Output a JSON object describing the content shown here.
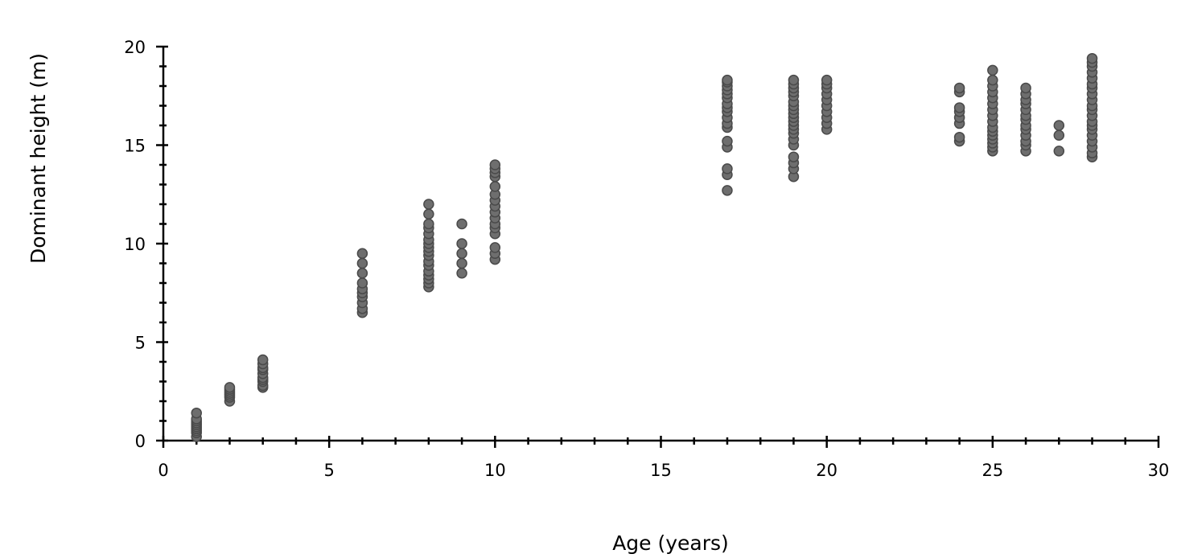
{
  "chart_data": {
    "type": "scatter",
    "title": "",
    "xlabel": "Age (years)",
    "ylabel": "Dominant height (m)",
    "xlim": [
      0,
      30
    ],
    "ylim": [
      0,
      20
    ],
    "x_ticks": [
      0,
      5,
      10,
      15,
      20,
      25,
      30
    ],
    "y_ticks": [
      0,
      5,
      10,
      15,
      20
    ],
    "x_tick_labels": [
      "0",
      "5",
      "10",
      "15",
      "20",
      "25",
      "30"
    ],
    "y_tick_labels": [
      "0",
      "5",
      "10",
      "15",
      "20"
    ],
    "x_minor_step": 1,
    "y_minor_step": 1,
    "grid": false,
    "legend": "none",
    "marker_color": "#6e6e6e",
    "series": [
      {
        "points": [
          [
            1,
            0.2
          ],
          [
            1,
            0.4
          ],
          [
            1,
            0.5
          ],
          [
            1,
            0.6
          ],
          [
            1,
            0.7
          ],
          [
            1,
            0.8
          ],
          [
            1,
            0.9
          ],
          [
            1,
            1.0
          ],
          [
            1,
            1.1
          ],
          [
            1,
            1.4
          ],
          [
            2,
            2.0
          ],
          [
            2,
            2.2
          ],
          [
            2,
            2.3
          ],
          [
            2,
            2.4
          ],
          [
            2,
            2.5
          ],
          [
            2,
            2.6
          ],
          [
            2,
            2.7
          ],
          [
            3,
            2.7
          ],
          [
            3,
            2.8
          ],
          [
            3,
            3.0
          ],
          [
            3,
            3.1
          ],
          [
            3,
            3.2
          ],
          [
            3,
            3.4
          ],
          [
            3,
            3.6
          ],
          [
            3,
            3.7
          ],
          [
            3,
            3.9
          ],
          [
            3,
            4.1
          ],
          [
            6,
            6.5
          ],
          [
            6,
            6.7
          ],
          [
            6,
            7.0
          ],
          [
            6,
            7.3
          ],
          [
            6,
            7.5
          ],
          [
            6,
            7.7
          ],
          [
            6,
            8.0
          ],
          [
            6,
            8.5
          ],
          [
            6,
            9.0
          ],
          [
            6,
            9.5
          ],
          [
            8,
            7.8
          ],
          [
            8,
            8.0
          ],
          [
            8,
            8.2
          ],
          [
            8,
            8.4
          ],
          [
            8,
            8.6
          ],
          [
            8,
            8.9
          ],
          [
            8,
            9.1
          ],
          [
            8,
            9.4
          ],
          [
            8,
            9.6
          ],
          [
            8,
            9.8
          ],
          [
            8,
            10.0
          ],
          [
            8,
            10.2
          ],
          [
            8,
            10.5
          ],
          [
            8,
            10.8
          ],
          [
            8,
            11.0
          ],
          [
            8,
            11.5
          ],
          [
            8,
            12.0
          ],
          [
            9,
            8.5
          ],
          [
            9,
            9.0
          ],
          [
            9,
            9.5
          ],
          [
            9,
            10.0
          ],
          [
            9,
            11.0
          ],
          [
            10,
            9.2
          ],
          [
            10,
            9.5
          ],
          [
            10,
            9.8
          ],
          [
            10,
            10.5
          ],
          [
            10,
            10.8
          ],
          [
            10,
            11.0
          ],
          [
            10,
            11.3
          ],
          [
            10,
            11.6
          ],
          [
            10,
            11.9
          ],
          [
            10,
            12.2
          ],
          [
            10,
            12.5
          ],
          [
            10,
            12.9
          ],
          [
            10,
            13.4
          ],
          [
            10,
            13.6
          ],
          [
            10,
            13.8
          ],
          [
            10,
            14.0
          ],
          [
            17,
            12.7
          ],
          [
            17,
            13.5
          ],
          [
            17,
            13.8
          ],
          [
            17,
            14.9
          ],
          [
            17,
            15.2
          ],
          [
            17,
            15.9
          ],
          [
            17,
            16.1
          ],
          [
            17,
            16.4
          ],
          [
            17,
            16.7
          ],
          [
            17,
            16.9
          ],
          [
            17,
            17.1
          ],
          [
            17,
            17.4
          ],
          [
            17,
            17.6
          ],
          [
            17,
            17.8
          ],
          [
            17,
            18.0
          ],
          [
            17,
            18.2
          ],
          [
            17,
            18.3
          ],
          [
            19,
            13.4
          ],
          [
            19,
            13.8
          ],
          [
            19,
            14.1
          ],
          [
            19,
            14.4
          ],
          [
            19,
            15.0
          ],
          [
            19,
            15.3
          ],
          [
            19,
            15.6
          ],
          [
            19,
            15.8
          ],
          [
            19,
            16.0
          ],
          [
            19,
            16.2
          ],
          [
            19,
            16.4
          ],
          [
            19,
            16.6
          ],
          [
            19,
            16.8
          ],
          [
            19,
            17.0
          ],
          [
            19,
            17.2
          ],
          [
            19,
            17.5
          ],
          [
            19,
            17.7
          ],
          [
            19,
            17.9
          ],
          [
            19,
            18.1
          ],
          [
            19,
            18.3
          ],
          [
            20,
            15.8
          ],
          [
            20,
            16.1
          ],
          [
            20,
            16.4
          ],
          [
            20,
            16.7
          ],
          [
            20,
            17.0
          ],
          [
            20,
            17.3
          ],
          [
            20,
            17.6
          ],
          [
            20,
            17.9
          ],
          [
            20,
            18.1
          ],
          [
            20,
            18.3
          ],
          [
            24,
            15.2
          ],
          [
            24,
            15.4
          ],
          [
            24,
            16.1
          ],
          [
            24,
            16.4
          ],
          [
            24,
            16.7
          ],
          [
            24,
            16.9
          ],
          [
            24,
            17.7
          ],
          [
            24,
            17.9
          ],
          [
            25,
            14.7
          ],
          [
            25,
            14.9
          ],
          [
            25,
            15.1
          ],
          [
            25,
            15.3
          ],
          [
            25,
            15.5
          ],
          [
            25,
            15.7
          ],
          [
            25,
            15.9
          ],
          [
            25,
            16.2
          ],
          [
            25,
            16.5
          ],
          [
            25,
            16.8
          ],
          [
            25,
            17.1
          ],
          [
            25,
            17.4
          ],
          [
            25,
            17.7
          ],
          [
            25,
            18.0
          ],
          [
            25,
            18.3
          ],
          [
            25,
            18.8
          ],
          [
            26,
            14.7
          ],
          [
            26,
            15.0
          ],
          [
            26,
            15.2
          ],
          [
            26,
            15.5
          ],
          [
            26,
            15.8
          ],
          [
            26,
            16.0
          ],
          [
            26,
            16.3
          ],
          [
            26,
            16.5
          ],
          [
            26,
            16.8
          ],
          [
            26,
            17.1
          ],
          [
            26,
            17.3
          ],
          [
            26,
            17.6
          ],
          [
            26,
            17.9
          ],
          [
            27,
            14.7
          ],
          [
            27,
            15.5
          ],
          [
            27,
            16.0
          ],
          [
            28,
            14.4
          ],
          [
            28,
            14.6
          ],
          [
            28,
            14.9
          ],
          [
            28,
            15.2
          ],
          [
            28,
            15.5
          ],
          [
            28,
            15.8
          ],
          [
            28,
            16.0
          ],
          [
            28,
            16.2
          ],
          [
            28,
            16.5
          ],
          [
            28,
            16.8
          ],
          [
            28,
            17.0
          ],
          [
            28,
            17.3
          ],
          [
            28,
            17.6
          ],
          [
            28,
            17.9
          ],
          [
            28,
            18.1
          ],
          [
            28,
            18.4
          ],
          [
            28,
            18.7
          ],
          [
            28,
            19.0
          ],
          [
            28,
            19.2
          ],
          [
            28,
            19.4
          ]
        ]
      }
    ]
  }
}
